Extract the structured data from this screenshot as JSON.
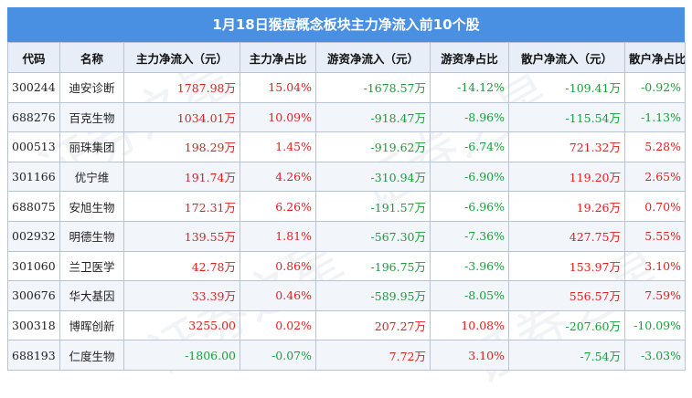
{
  "title": "1月18日猴痘概念板块主力净流入前10个股",
  "watermark": "证券之星",
  "headers": [
    "代码",
    "名称",
    "主力净流入（元）",
    "主力净占比",
    "游资净流入（元）",
    "游资净占比",
    "散户净流入（元）",
    "散户净占比"
  ],
  "rows": [
    {
      "code": "300244",
      "name": "迪安诊断",
      "main_in": "1787.98万",
      "main_pct": "15.04%",
      "hot_in": "-1678.57万",
      "hot_pct": "-14.12%",
      "retail_in": "-109.41万",
      "retail_pct": "-0.92%"
    },
    {
      "code": "688276",
      "name": "百克生物",
      "main_in": "1034.01万",
      "main_pct": "10.09%",
      "hot_in": "-918.47万",
      "hot_pct": "-8.96%",
      "retail_in": "-115.54万",
      "retail_pct": "-1.13%"
    },
    {
      "code": "000513",
      "name": "丽珠集团",
      "main_in": "198.29万",
      "main_pct": "1.45%",
      "hot_in": "-919.62万",
      "hot_pct": "-6.74%",
      "retail_in": "721.32万",
      "retail_pct": "5.28%"
    },
    {
      "code": "301166",
      "name": "优宁维",
      "main_in": "191.74万",
      "main_pct": "4.26%",
      "hot_in": "-310.94万",
      "hot_pct": "-6.90%",
      "retail_in": "119.20万",
      "retail_pct": "2.65%"
    },
    {
      "code": "688075",
      "name": "安旭生物",
      "main_in": "172.31万",
      "main_pct": "6.26%",
      "hot_in": "-191.57万",
      "hot_pct": "-6.96%",
      "retail_in": "19.26万",
      "retail_pct": "0.70%"
    },
    {
      "code": "002932",
      "name": "明德生物",
      "main_in": "139.55万",
      "main_pct": "1.81%",
      "hot_in": "-567.30万",
      "hot_pct": "-7.36%",
      "retail_in": "427.75万",
      "retail_pct": "5.55%"
    },
    {
      "code": "301060",
      "name": "兰卫医学",
      "main_in": "42.78万",
      "main_pct": "0.86%",
      "hot_in": "-196.75万",
      "hot_pct": "-3.96%",
      "retail_in": "153.97万",
      "retail_pct": "3.10%"
    },
    {
      "code": "300676",
      "name": "华大基因",
      "main_in": "33.39万",
      "main_pct": "0.46%",
      "hot_in": "-589.95万",
      "hot_pct": "-8.05%",
      "retail_in": "556.57万",
      "retail_pct": "7.59%"
    },
    {
      "code": "300318",
      "name": "博晖创新",
      "main_in": "3255.00",
      "main_pct": "0.02%",
      "hot_in": "207.27万",
      "hot_pct": "10.08%",
      "retail_in": "-207.60万",
      "retail_pct": "-10.09%"
    },
    {
      "code": "688193",
      "name": "仁度生物",
      "main_in": "-1806.00",
      "main_pct": "-0.07%",
      "hot_in": "7.72万",
      "hot_pct": "3.10%",
      "retail_in": "-7.54万",
      "retail_pct": "-3.03%"
    }
  ],
  "colors": {
    "header_bg": "#4a90e2",
    "positive": "#e02020",
    "negative": "#1a9e3a"
  }
}
